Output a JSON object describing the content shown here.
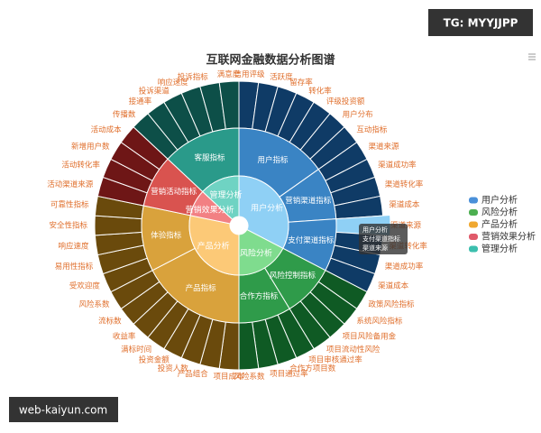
{
  "watermark_top": "TG: MYYJJPP",
  "watermark_bottom": "web-kaiyun.com",
  "chart_data": {
    "type": "sunburst",
    "title": "互联网金融数据分析图谱",
    "legend_position": "right",
    "tooltip": {
      "lines": [
        "用户分析",
        "支付渠道指标",
        "渠道来源"
      ]
    },
    "nodes": [
      {
        "name": "用户分析",
        "color": "#8fd0f5",
        "legend_color": "#4a90d9",
        "children": [
          {
            "name": "用户指标",
            "color": "#3a84c4",
            "leaf_color": "#0f3b66",
            "children": [
              {
                "name": "信用评级",
                "value": 1
              },
              {
                "name": "活跃度",
                "value": 1
              },
              {
                "name": "留存率",
                "value": 1
              },
              {
                "name": "转化率",
                "value": 1
              },
              {
                "name": "评级投资额",
                "value": 1
              },
              {
                "name": "用户分布",
                "value": 1
              },
              {
                "name": "互动指标",
                "value": 1
              }
            ]
          },
          {
            "name": "营销渠道指标",
            "color": "#3a84c4",
            "leaf_color": "#0f3b66",
            "children": [
              {
                "name": "渠道来源",
                "value": 1
              },
              {
                "name": "渠道成功率",
                "value": 1
              },
              {
                "name": "渠道转化率",
                "value": 1
              },
              {
                "name": "渠道成本",
                "value": 1
              }
            ]
          },
          {
            "name": "支付渠道指标",
            "color": "#3a84c4",
            "leaf_color": "#0f3b66",
            "children": [
              {
                "name": "渠道来源",
                "value": 1,
                "highlighted": true
              },
              {
                "name": "渠道转化率",
                "value": 1
              },
              {
                "name": "渠道成功率",
                "value": 1
              },
              {
                "name": "渠道成本",
                "value": 1
              }
            ]
          }
        ]
      },
      {
        "name": "风险分析",
        "color": "#7fdc8e",
        "legend_color": "#4caf50",
        "children": [
          {
            "name": "风险控制指标",
            "color": "#2f9b4a",
            "leaf_color": "#0f5a24",
            "children": [
              {
                "name": "政策风险指标",
                "value": 1
              },
              {
                "name": "系统风险指标",
                "value": 1
              },
              {
                "name": "项目风险备用金",
                "value": 1
              },
              {
                "name": "项目流动性风险",
                "value": 1
              }
            ]
          },
          {
            "name": "合作方指标",
            "color": "#2f9b4a",
            "leaf_color": "#0f5a24",
            "children": [
              {
                "name": "项目审核通过率",
                "value": 1
              },
              {
                "name": "合作方项目数",
                "value": 1
              },
              {
                "name": "项目通过率",
                "value": 1
              },
              {
                "name": "风险系数",
                "value": 1
              }
            ]
          }
        ]
      },
      {
        "name": "产品分析",
        "color": "#fcc977",
        "legend_color": "#f0a830",
        "children": [
          {
            "name": "产品指标",
            "color": "#d9a23c",
            "leaf_color": "#6a4a0c",
            "children": [
              {
                "name": "项目成本",
                "value": 1
              },
              {
                "name": "产品组合",
                "value": 1
              },
              {
                "name": "投资人数",
                "value": 1
              },
              {
                "name": "投资金额",
                "value": 1
              },
              {
                "name": "满标时间",
                "value": 1
              },
              {
                "name": "收益率",
                "value": 1
              },
              {
                "name": "流标数",
                "value": 1
              },
              {
                "name": "风险系数",
                "value": 1
              }
            ]
          },
          {
            "name": "体验指标",
            "color": "#d9a23c",
            "leaf_color": "#6a4a0c",
            "children": [
              {
                "name": "受欢迎度",
                "value": 1
              },
              {
                "name": "易用性指标",
                "value": 1
              },
              {
                "name": "响应速度",
                "value": 1
              },
              {
                "name": "安全性指标",
                "value": 1
              },
              {
                "name": "可靠性指标",
                "value": 1
              }
            ]
          }
        ]
      },
      {
        "name": "营销效果分析",
        "color": "#f28083",
        "legend_color": "#e05a6a",
        "children": [
          {
            "name": "营销活动指标",
            "color": "#d9534f",
            "leaf_color": "#6e1616",
            "children": [
              {
                "name": "活动渠道来源",
                "value": 1
              },
              {
                "name": "活动转化率",
                "value": 1
              },
              {
                "name": "新增用户数",
                "value": 1
              },
              {
                "name": "活动成本",
                "value": 1
              }
            ]
          }
        ]
      },
      {
        "name": "管理分析",
        "color": "#6fd3c3",
        "legend_color": "#3cbfae",
        "children": [
          {
            "name": "客服指标",
            "color": "#2a9a8a",
            "leaf_color": "#0d4f48",
            "children": [
              {
                "name": "传播数",
                "value": 1
              },
              {
                "name": "接通率",
                "value": 1
              },
              {
                "name": "投诉渠道",
                "value": 1
              },
              {
                "name": "响应速度",
                "value": 1
              },
              {
                "name": "投诉指标",
                "value": 1
              },
              {
                "name": "满意度",
                "value": 1
              }
            ]
          }
        ]
      }
    ]
  }
}
